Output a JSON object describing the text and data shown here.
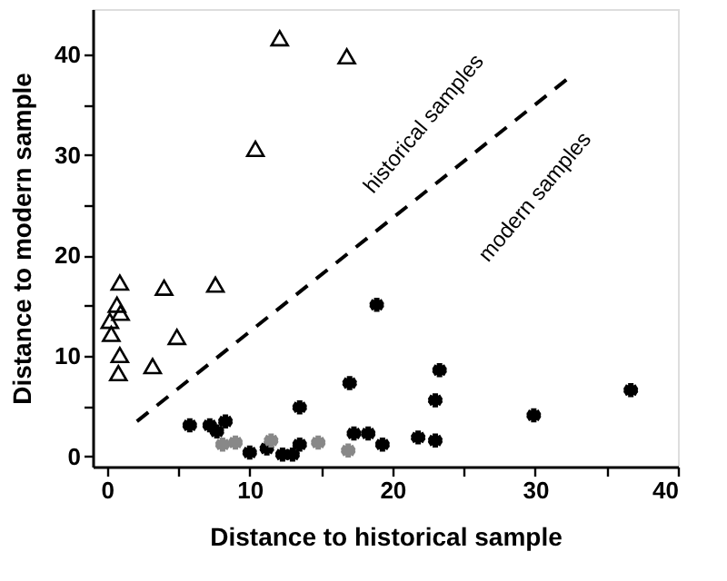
{
  "chart_data": {
    "type": "scatter",
    "xlabel": "Distance to historical sample",
    "ylabel": "Distance to modern sample",
    "xlim": [
      -1,
      40
    ],
    "ylim": [
      -1,
      44.5
    ],
    "xticks": [
      0,
      {
        "value": 5,
        "label": null
      },
      10,
      {
        "value": 15,
        "label": null
      },
      20,
      {
        "value": 25,
        "label": null
      },
      30,
      {
        "value": 35,
        "label": null
      },
      40
    ],
    "yticks": [
      0,
      {
        "value": 5,
        "label": null
      },
      10,
      {
        "value": 15,
        "label": null
      },
      20,
      {
        "value": 25,
        "label": null
      },
      30,
      {
        "value": 35,
        "label": null
      },
      40
    ],
    "grid": false,
    "series": [
      {
        "marker": "triangle",
        "color": "#000000",
        "x": [
          12.1,
          16.8,
          10.4,
          0.9,
          4.0,
          7.6,
          0.7,
          0.95,
          0.2,
          0.3,
          4.9,
          0.9,
          3.2,
          0.8
        ],
        "values": [
          41.6,
          39.8,
          30.6,
          17.3,
          16.8,
          17.1,
          15.1,
          14.3,
          13.5,
          12.2,
          11.9,
          10.1,
          9.0,
          8.3
        ]
      },
      {
        "marker": "cross",
        "color": "#000000",
        "x": [
          18.9,
          17.0,
          13.5,
          5.8,
          7.2,
          8.3,
          7.7,
          17.3,
          18.3,
          10.0,
          11.2,
          12.3,
          13.0,
          13.5,
          19.3,
          21.8,
          23.3,
          23.0,
          29.9,
          36.7,
          23.0
        ],
        "values": [
          15.1,
          7.3,
          4.9,
          3.1,
          3.1,
          3.5,
          2.5,
          2.3,
          2.3,
          0.4,
          0.8,
          0.2,
          0.2,
          1.2,
          1.2,
          1.9,
          8.6,
          5.6,
          4.1,
          6.6,
          1.6
        ]
      },
      {
        "marker": "cross",
        "color": "#888888",
        "x": [
          8.1,
          9.0,
          11.5,
          14.8,
          16.9
        ],
        "values": [
          1.2,
          1.4,
          1.6,
          1.4,
          0.6
        ]
      },
      {
        "type": "line",
        "line_style": "dashed",
        "marker": "none",
        "color": "#000000",
        "x": [
          2.1,
          32.3
        ],
        "values": [
          3.5,
          37.6
        ]
      }
    ],
    "annotations": [
      "historical samples",
      "modern samples"
    ]
  }
}
